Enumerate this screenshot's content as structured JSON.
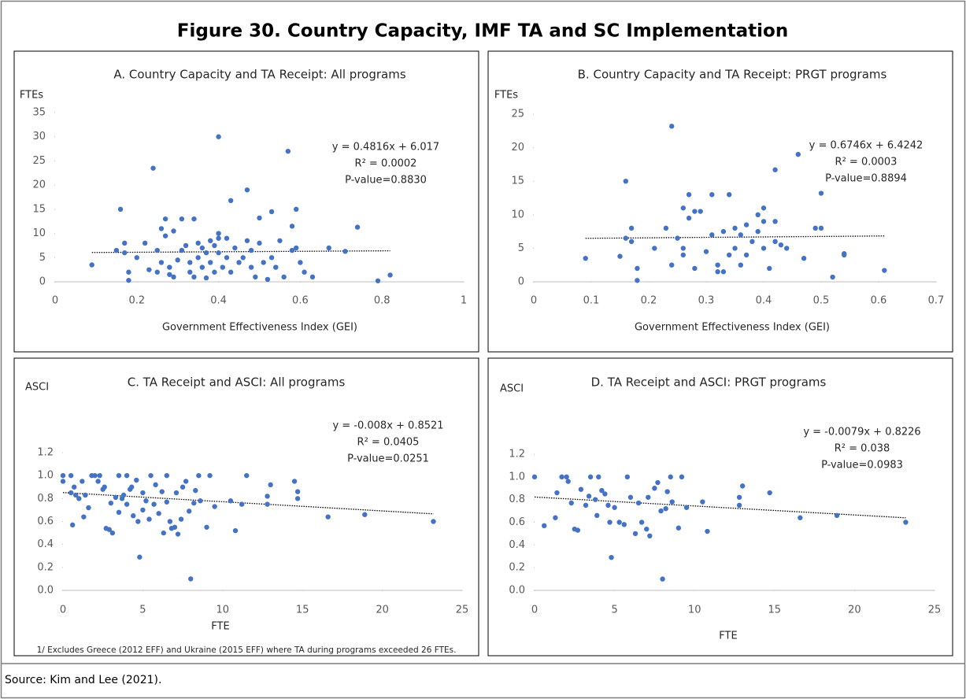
{
  "title": "Figure 30. Country Capacity, IMF TA and SC Implementation",
  "source": "Source: Kim and Lee (2021).",
  "chart_data": [
    {
      "type": "scatter",
      "title": "A. Country Capacity and TA Receipt: All programs",
      "x_label": "Government Effectiveness Index (GEI)",
      "y_label": "FTEs",
      "color": "#4472c4",
      "x": [
        0.09,
        0.16,
        0.15,
        0.17,
        0.17,
        0.18,
        0.18,
        0.2,
        0.22,
        0.23,
        0.24,
        0.25,
        0.25,
        0.26,
        0.26,
        0.27,
        0.27,
        0.28,
        0.28,
        0.29,
        0.29,
        0.3,
        0.31,
        0.31,
        0.32,
        0.33,
        0.33,
        0.34,
        0.34,
        0.35,
        0.35,
        0.36,
        0.36,
        0.37,
        0.37,
        0.38,
        0.38,
        0.39,
        0.39,
        0.4,
        0.4,
        0.4,
        0.4,
        0.41,
        0.42,
        0.42,
        0.43,
        0.43,
        0.44,
        0.45,
        0.46,
        0.47,
        0.47,
        0.48,
        0.48,
        0.49,
        0.5,
        0.5,
        0.51,
        0.52,
        0.53,
        0.53,
        0.54,
        0.55,
        0.56,
        0.57,
        0.58,
        0.58,
        0.59,
        0.59,
        0.6,
        0.61,
        0.63,
        0.67,
        0.71,
        0.74,
        0.79,
        0.82
      ],
      "values": [
        3.5,
        15,
        6.5,
        8,
        6,
        2,
        0.3,
        5,
        8,
        2.5,
        23.5,
        2,
        6.5,
        11,
        4,
        13,
        9.5,
        1.5,
        3,
        1,
        10.5,
        4.5,
        13,
        6.5,
        7.5,
        2,
        4,
        13,
        1,
        8,
        5,
        3,
        7,
        0.8,
        6,
        8.5,
        4,
        2,
        7.5,
        30,
        10,
        9,
        6,
        3,
        9,
        5,
        16.8,
        2,
        7,
        4,
        5,
        19,
        8.5,
        3,
        6.5,
        1,
        13.2,
        8,
        4,
        0.5,
        14.5,
        5,
        3,
        8.5,
        1,
        27,
        6.5,
        11.5,
        15,
        7,
        4,
        2,
        1,
        7,
        6.3,
        11.3,
        0.2,
        1.4
      ],
      "xlim": [
        0,
        1
      ],
      "ylim": [
        0,
        35
      ],
      "xticks": [
        0,
        0.2,
        0.4,
        0.6,
        0.8,
        1
      ],
      "yticks": [
        0,
        5,
        10,
        15,
        20,
        25,
        30,
        35
      ],
      "trendline": {
        "slope": 0.4816,
        "intercept": 6.017
      },
      "annotations": [
        "y = 0.4816x + 6.017",
        "R² = 0.0002",
        "P-value=0.8830"
      ]
    },
    {
      "type": "scatter",
      "title": "B. Country Capacity and TA Receipt: PRGT programs",
      "x_label": "Government Effectiveness Index (GEI)",
      "y_label": "FTEs",
      "color": "#4472c4",
      "x": [
        0.09,
        0.15,
        0.16,
        0.16,
        0.17,
        0.17,
        0.18,
        0.18,
        0.21,
        0.23,
        0.24,
        0.24,
        0.25,
        0.26,
        0.26,
        0.26,
        0.27,
        0.27,
        0.28,
        0.28,
        0.29,
        0.3,
        0.31,
        0.31,
        0.32,
        0.32,
        0.33,
        0.33,
        0.34,
        0.34,
        0.35,
        0.35,
        0.36,
        0.36,
        0.37,
        0.37,
        0.38,
        0.39,
        0.39,
        0.4,
        0.4,
        0.4,
        0.41,
        0.42,
        0.42,
        0.42,
        0.43,
        0.44,
        0.46,
        0.47,
        0.49,
        0.5,
        0.5,
        0.52,
        0.54,
        0.54,
        0.61
      ],
      "values": [
        3.5,
        3.8,
        15,
        6.5,
        8,
        6,
        2,
        0.2,
        5,
        8,
        2.5,
        23.2,
        6.5,
        11,
        4,
        5,
        13,
        9.5,
        2,
        10.5,
        10.5,
        4.5,
        13,
        7,
        2.5,
        1.5,
        7.5,
        1.5,
        13,
        4,
        8,
        5,
        2.5,
        7,
        8.5,
        4,
        6,
        7.5,
        10,
        11,
        9,
        5,
        2,
        9,
        6,
        16.7,
        5.5,
        5,
        19,
        3.5,
        8,
        13.2,
        8,
        0.7,
        4.2,
        4,
        1.7
      ],
      "xlim": [
        0,
        0.7
      ],
      "ylim": [
        0,
        25
      ],
      "xticks": [
        0,
        0.1,
        0.2,
        0.3,
        0.4,
        0.5,
        0.6,
        0.7
      ],
      "yticks": [
        0,
        5,
        10,
        15,
        20,
        25
      ],
      "trendline": {
        "slope": 0.6746,
        "intercept": 6.4242
      },
      "annotations": [
        "y = 0.6746x + 6.4242",
        "R² = 0.0003",
        "P-value=0.8894"
      ]
    },
    {
      "type": "scatter",
      "title": "C. TA Receipt and ASCI: All programs",
      "x_label": "FTE",
      "y_label": "ASCI",
      "color": "#4472c4",
      "x": [
        0,
        0,
        0.5,
        0.5,
        0.6,
        0.8,
        0.7,
        1,
        1.2,
        1.3,
        1.4,
        1.6,
        1.8,
        2,
        2.2,
        2.3,
        2.5,
        2.6,
        2.7,
        2.9,
        3,
        3.1,
        3.3,
        3.5,
        3.5,
        3.7,
        3.8,
        4,
        4,
        4.2,
        4.3,
        4.4,
        4.6,
        4.7,
        4.8,
        5,
        5,
        5.2,
        5.4,
        5.5,
        5.7,
        5.8,
        6,
        6.2,
        6.3,
        6.5,
        6.5,
        6.7,
        6.8,
        7,
        7.1,
        7.2,
        7.4,
        7.5,
        7.7,
        7.9,
        8,
        8.2,
        8.3,
        8.5,
        8.6,
        9,
        9.2,
        9.5,
        10.5,
        10.8,
        11.2,
        11.5,
        12.8,
        12.8,
        13,
        14.5,
        14.7,
        14.7,
        16.6,
        18.9,
        23.2
      ],
      "values": [
        1,
        0.95,
        1,
        0.85,
        0.57,
        0.83,
        0.9,
        0.8,
        0.95,
        0.64,
        0.83,
        0.72,
        1,
        1,
        0.95,
        1,
        0.88,
        0.9,
        0.54,
        0.53,
        0.76,
        0.5,
        0.81,
        1,
        0.68,
        0.8,
        0.83,
        1,
        0.75,
        0.88,
        0.9,
        0.65,
        0.96,
        0.6,
        0.29,
        0.85,
        0.7,
        0.78,
        0.62,
        1,
        0.75,
        0.92,
        0.67,
        0.86,
        0.5,
        1,
        0.77,
        0.6,
        0.54,
        0.55,
        0.85,
        0.49,
        0.62,
        0.9,
        0.95,
        0.69,
        0.1,
        0.76,
        0.87,
        1,
        0.78,
        0.55,
        1,
        0.73,
        0.78,
        0.52,
        0.75,
        1,
        0.82,
        0.75,
        0.92,
        0.95,
        0.86,
        0.8,
        0.64,
        0.66,
        0.6
      ],
      "xlim": [
        0,
        25
      ],
      "ylim": [
        0,
        1.2
      ],
      "xticks": [
        0,
        5,
        10,
        15,
        20,
        25
      ],
      "yticks": [
        {
          "value": 0,
          "label": "0.0"
        },
        0.2,
        0.4,
        0.6,
        0.8,
        {
          "value": 1,
          "label": "1.0"
        },
        1.2
      ],
      "trendline": {
        "slope": -0.008,
        "intercept": 0.8521
      },
      "annotations": [
        "y = -0.008x + 0.8521",
        "R² = 0.0405",
        "P-value=0.0251"
      ],
      "note": "1/ Excludes Greece (2012 EFF) and Ukraine (2015 EFF)  where TA during programs  exceeded 26 FTEs."
    },
    {
      "type": "scatter",
      "title": "D. TA Receipt and ASCI: PRGT programs",
      "x_label": "FTE",
      "y_label": "ASCI",
      "color": "#4472c4",
      "x": [
        0,
        0.6,
        1.3,
        1.4,
        1.7,
        2,
        2.1,
        2.3,
        2.5,
        2.7,
        2.9,
        3.2,
        3.4,
        3.5,
        3.8,
        3.9,
        4,
        4.2,
        4.4,
        4.6,
        4.7,
        4.8,
        5,
        5.3,
        5.6,
        5.8,
        6,
        6.3,
        6.5,
        6.7,
        7,
        7.1,
        7.2,
        7.5,
        7.7,
        7.9,
        8,
        8.2,
        8.3,
        8.5,
        8.6,
        9,
        9.2,
        9.5,
        10.5,
        10.8,
        12.8,
        12.8,
        13,
        14.7,
        16.6,
        18.9,
        23.2
      ],
      "values": [
        1,
        0.57,
        0.64,
        0.86,
        1,
        1,
        0.96,
        0.77,
        0.54,
        0.53,
        0.89,
        0.75,
        0.83,
        1,
        0.8,
        0.66,
        1,
        0.88,
        0.85,
        0.75,
        0.6,
        0.29,
        0.73,
        0.6,
        0.58,
        1,
        0.82,
        0.5,
        0.77,
        0.6,
        0.54,
        0.82,
        0.48,
        0.9,
        0.95,
        0.7,
        0.1,
        0.72,
        0.87,
        1,
        0.78,
        0.55,
        1,
        0.73,
        0.78,
        0.52,
        0.82,
        0.75,
        0.92,
        0.86,
        0.64,
        0.66,
        0.6
      ],
      "xlim": [
        0,
        25
      ],
      "ylim": [
        0,
        1.2
      ],
      "xticks": [
        0,
        5,
        10,
        15,
        20,
        25
      ],
      "yticks": [
        {
          "value": 0,
          "label": "0.0"
        },
        0.2,
        0.4,
        0.6,
        0.8,
        {
          "value": 1,
          "label": "1.0"
        },
        1.2
      ],
      "trendline": {
        "slope": -0.0079,
        "intercept": 0.8226
      },
      "annotations": [
        "y = -0.0079x + 0.8226",
        "R² = 0.038",
        "P-value=0.0983"
      ]
    }
  ]
}
